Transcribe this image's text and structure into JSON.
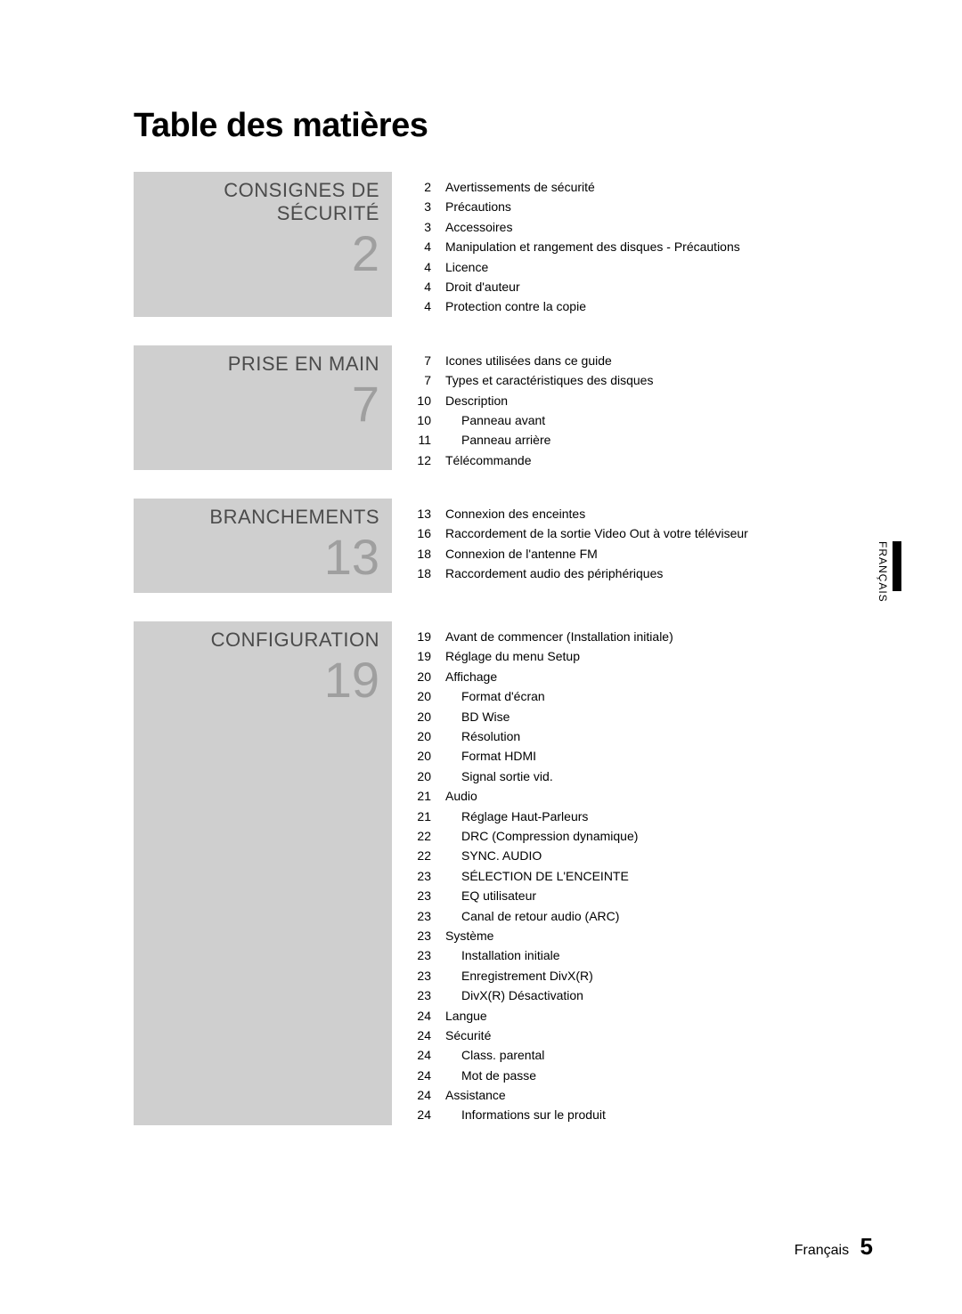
{
  "title": "Table des matières",
  "side_tab": "FRANÇAIS",
  "footer_lang": "Français",
  "footer_page": "5",
  "sections": [
    {
      "heading": "CONSIGNES DE SÉCURITÉ",
      "number": "2",
      "entries": [
        {
          "pg": "2",
          "txt": "Avertissements de sécurité",
          "indent": false
        },
        {
          "pg": "3",
          "txt": "Précautions",
          "indent": false
        },
        {
          "pg": "3",
          "txt": "Accessoires",
          "indent": false
        },
        {
          "pg": "4",
          "txt": "Manipulation et rangement des disques - Précautions",
          "indent": false
        },
        {
          "pg": "4",
          "txt": "Licence",
          "indent": false
        },
        {
          "pg": "4",
          "txt": "Droit d'auteur",
          "indent": false
        },
        {
          "pg": "4",
          "txt": "Protection contre la copie",
          "indent": false
        }
      ]
    },
    {
      "heading": "PRISE EN MAIN",
      "number": "7",
      "entries": [
        {
          "pg": "7",
          "txt": "Icones utilisées dans ce guide",
          "indent": false
        },
        {
          "pg": "7",
          "txt": "Types et caractéristiques des disques",
          "indent": false
        },
        {
          "pg": "10",
          "txt": "Description",
          "indent": false
        },
        {
          "pg": "10",
          "txt": "Panneau avant",
          "indent": true
        },
        {
          "pg": "11",
          "txt": "Panneau arrière",
          "indent": true
        },
        {
          "pg": "12",
          "txt": "Télécommande",
          "indent": false
        }
      ]
    },
    {
      "heading": "BRANCHEMENTS",
      "number": "13",
      "entries": [
        {
          "pg": "13",
          "txt": "Connexion des enceintes",
          "indent": false
        },
        {
          "pg": "16",
          "txt": "Raccordement de la sortie Video Out à votre téléviseur",
          "indent": false
        },
        {
          "pg": "18",
          "txt": "Connexion de l'antenne FM",
          "indent": false
        },
        {
          "pg": "18",
          "txt": "Raccordement audio des périphériques",
          "indent": false
        }
      ]
    },
    {
      "heading": "CONFIGURATION",
      "number": "19",
      "entries": [
        {
          "pg": "19",
          "txt": "Avant de commencer (Installation initiale)",
          "indent": false
        },
        {
          "pg": "19",
          "txt": "Réglage du menu Setup",
          "indent": false
        },
        {
          "pg": "20",
          "txt": "Affichage",
          "indent": false
        },
        {
          "pg": "20",
          "txt": "Format d'écran",
          "indent": true
        },
        {
          "pg": "20",
          "txt": "BD Wise",
          "indent": true
        },
        {
          "pg": "20",
          "txt": "Résolution",
          "indent": true
        },
        {
          "pg": "20",
          "txt": "Format HDMI",
          "indent": true
        },
        {
          "pg": "20",
          "txt": "Signal sortie vid.",
          "indent": true
        },
        {
          "pg": "21",
          "txt": "Audio",
          "indent": false
        },
        {
          "pg": "21",
          "txt": "Réglage Haut-Parleurs",
          "indent": true
        },
        {
          "pg": "22",
          "txt": "DRC (Compression dynamique)",
          "indent": true
        },
        {
          "pg": "22",
          "txt": "SYNC. AUDIO",
          "indent": true
        },
        {
          "pg": "23",
          "txt": "SÉLECTION DE L'ENCEINTE",
          "indent": true
        },
        {
          "pg": "23",
          "txt": "EQ utilisateur",
          "indent": true
        },
        {
          "pg": "23",
          "txt": "Canal de retour audio (ARC)",
          "indent": true
        },
        {
          "pg": "23",
          "txt": "Système",
          "indent": false
        },
        {
          "pg": "23",
          "txt": "Installation initiale",
          "indent": true
        },
        {
          "pg": "23",
          "txt": "Enregistrement DivX(R)",
          "indent": true
        },
        {
          "pg": "23",
          "txt": "DivX(R) Désactivation",
          "indent": true
        },
        {
          "pg": "24",
          "txt": "Langue",
          "indent": false
        },
        {
          "pg": "24",
          "txt": "Sécurité",
          "indent": false
        },
        {
          "pg": "24",
          "txt": "Class. parental",
          "indent": true
        },
        {
          "pg": "24",
          "txt": "Mot de passe",
          "indent": true
        },
        {
          "pg": "24",
          "txt": "Assistance",
          "indent": false
        },
        {
          "pg": "24",
          "txt": "Informations sur le produit",
          "indent": true
        }
      ]
    }
  ]
}
